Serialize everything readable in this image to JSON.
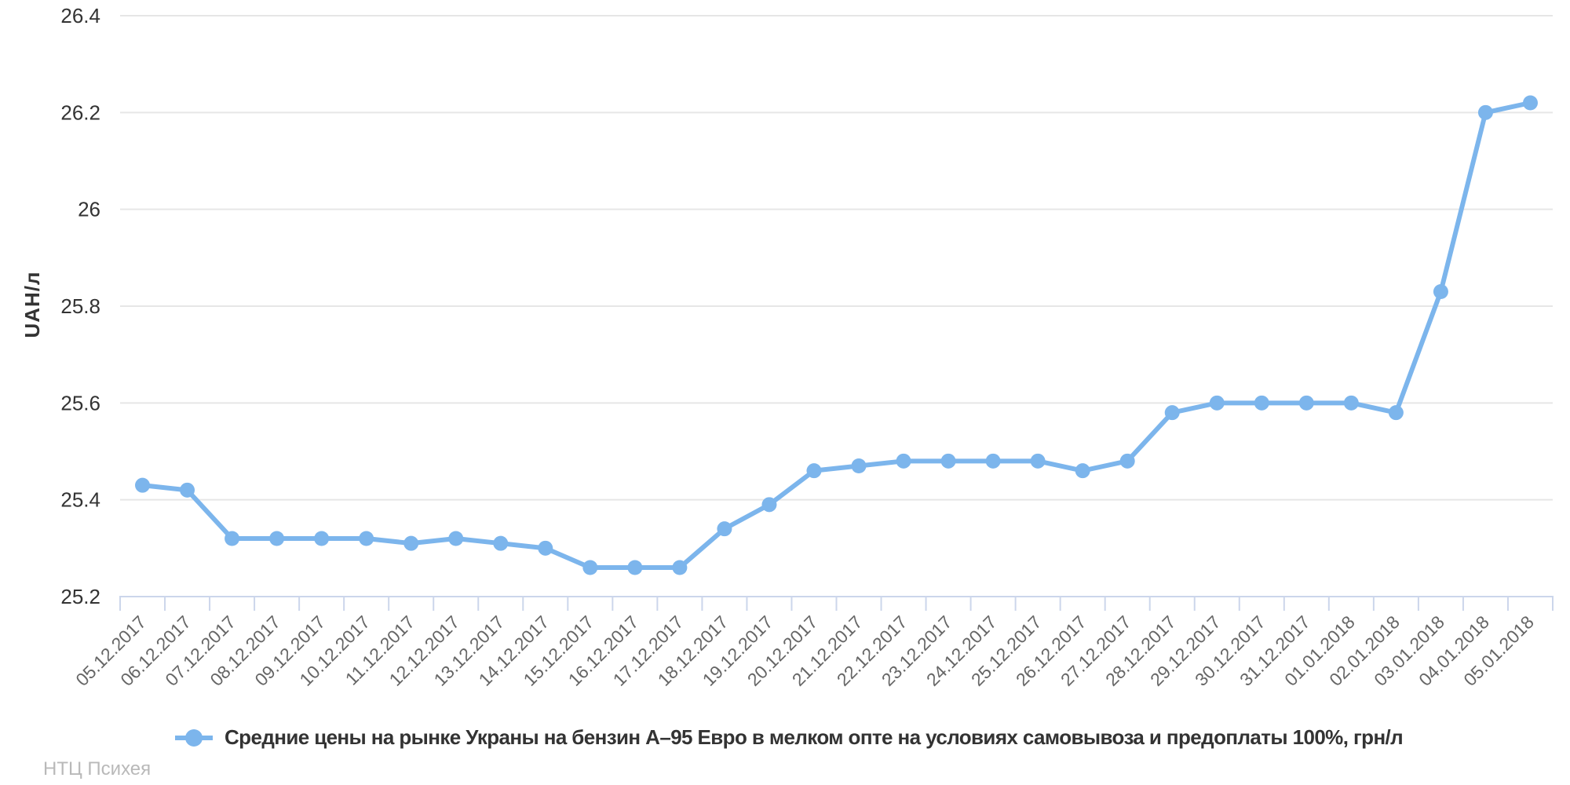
{
  "chart_data": {
    "type": "line",
    "categories": [
      "05.12.2017",
      "06.12.2017",
      "07.12.2017",
      "08.12.2017",
      "09.12.2017",
      "10.12.2017",
      "11.12.2017",
      "12.12.2017",
      "13.12.2017",
      "14.12.2017",
      "15.12.2017",
      "16.12.2017",
      "17.12.2017",
      "18.12.2017",
      "19.12.2017",
      "20.12.2017",
      "21.12.2017",
      "22.12.2017",
      "23.12.2017",
      "24.12.2017",
      "25.12.2017",
      "26.12.2017",
      "27.12.2017",
      "28.12.2017",
      "29.12.2017",
      "30.12.2017",
      "31.12.2017",
      "01.01.2018",
      "02.01.2018",
      "03.01.2018",
      "04.01.2018",
      "05.01.2018"
    ],
    "series": [
      {
        "name": "Средние цены на рынке Украны на бензин А–95 Евро в мелком опте на условиях самовывоза и предоплаты 100%, грн/л",
        "values": [
          25.43,
          25.42,
          25.32,
          25.32,
          25.32,
          25.32,
          25.31,
          25.32,
          25.31,
          25.3,
          25.26,
          25.26,
          25.26,
          25.34,
          25.39,
          25.46,
          25.47,
          25.48,
          25.48,
          25.48,
          25.48,
          25.46,
          25.48,
          25.58,
          25.6,
          25.6,
          25.6,
          25.6,
          25.58,
          25.83,
          26.2,
          26.22
        ]
      }
    ],
    "title": "",
    "xlabel": "",
    "ylabel": "UAH/л",
    "ylim": [
      25.2,
      26.4
    ],
    "ytick_step": 0.2,
    "grid": true,
    "legend_position": "bottom",
    "line_color": "#7cb5ec",
    "marker_color": "#7cb5ec"
  },
  "colors": {
    "gridline": "#e6e6e6",
    "axis_line": "#ccd6eb",
    "y_tick_label": "#333333",
    "x_tick_label": "#666666"
  },
  "footer": {
    "credit": "НТЦ Психея"
  }
}
